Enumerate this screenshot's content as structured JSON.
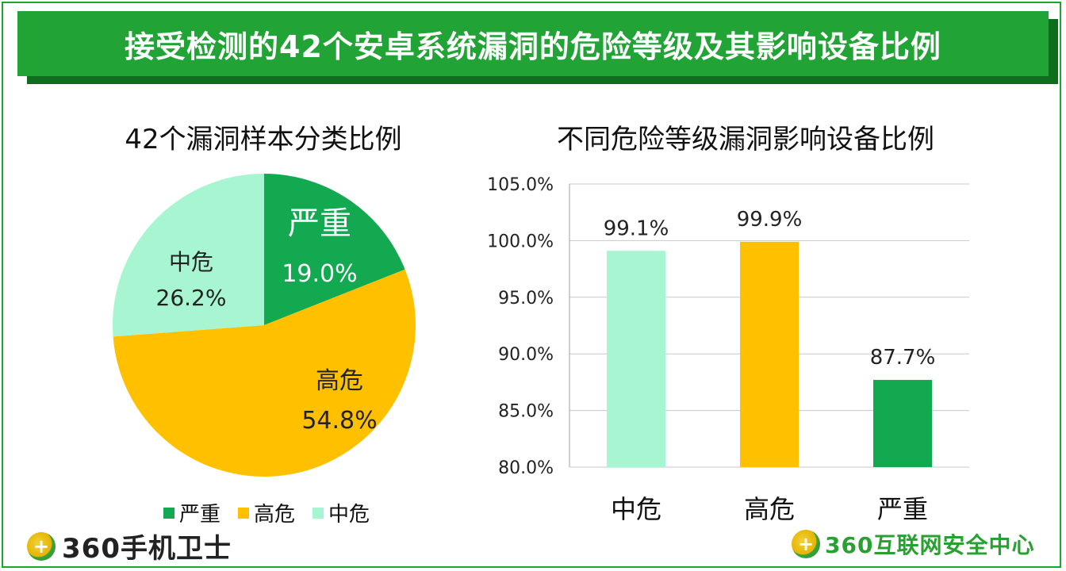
{
  "banner": {
    "title": "接受检测的42个安卓系统漏洞的危险等级及其影响设备比例"
  },
  "colors": {
    "serious": "#13a950",
    "high": "#ffc000",
    "medium": "#a8f5d1",
    "banner": "#21a336",
    "frame": "#19a82e"
  },
  "chart_data": [
    {
      "type": "pie",
      "title": "42个漏洞样本分类比例",
      "slices": [
        {
          "label": "严重",
          "value": 19.0,
          "value_label": "19.0%",
          "color": "#13a950"
        },
        {
          "label": "高危",
          "value": 54.8,
          "value_label": "54.8%",
          "color": "#ffc000"
        },
        {
          "label": "中危",
          "value": 26.2,
          "value_label": "26.2%",
          "color": "#a8f5d1"
        }
      ],
      "legend": [
        "严重",
        "高危",
        "中危"
      ],
      "legend_position": "bottom"
    },
    {
      "type": "bar",
      "title": "不同危险等级漏洞影响设备比例",
      "categories": [
        "中危",
        "高危",
        "严重"
      ],
      "values": [
        99.1,
        99.9,
        87.7
      ],
      "value_labels": [
        "99.1%",
        "99.9%",
        "87.7%"
      ],
      "colors": [
        "#a8f5d1",
        "#ffc000",
        "#13a950"
      ],
      "ylim": [
        80,
        105
      ],
      "yticks": [
        "80.0%",
        "85.0%",
        "90.0%",
        "95.0%",
        "100.0%",
        "105.0%"
      ],
      "ytick_values": [
        80,
        85,
        90,
        95,
        100,
        105
      ],
      "grid": true
    }
  ],
  "logos": {
    "left": "360手机卫士",
    "right": "360互联网安全中心"
  }
}
